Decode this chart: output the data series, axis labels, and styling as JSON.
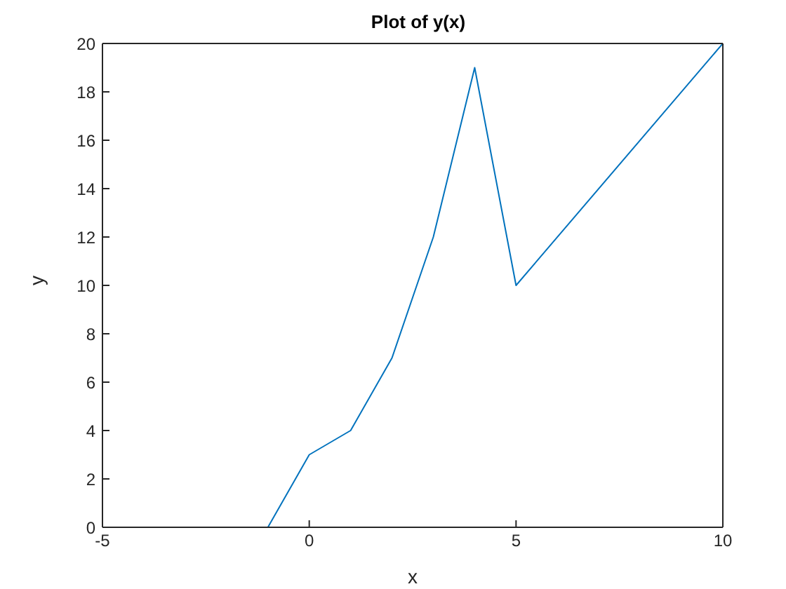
{
  "chart_data": {
    "type": "line",
    "title": "Plot of y(x)",
    "xlabel": "x",
    "ylabel": "y",
    "x": [
      -5,
      -1,
      0,
      1,
      2,
      3,
      4,
      5,
      10
    ],
    "series": [
      {
        "color": "#0072bd",
        "values": [
          0,
          0,
          3,
          4,
          7,
          12,
          19,
          10,
          20
        ]
      }
    ],
    "xlim": [
      -5,
      10
    ],
    "xticks": [
      -5,
      0,
      5,
      10
    ],
    "ylim": [
      0,
      20
    ],
    "yticks": [
      0,
      2,
      4,
      6,
      8,
      10,
      12,
      14,
      16,
      18,
      20
    ],
    "grid": false,
    "legend": false,
    "marker": "none",
    "line_style": "solid"
  }
}
